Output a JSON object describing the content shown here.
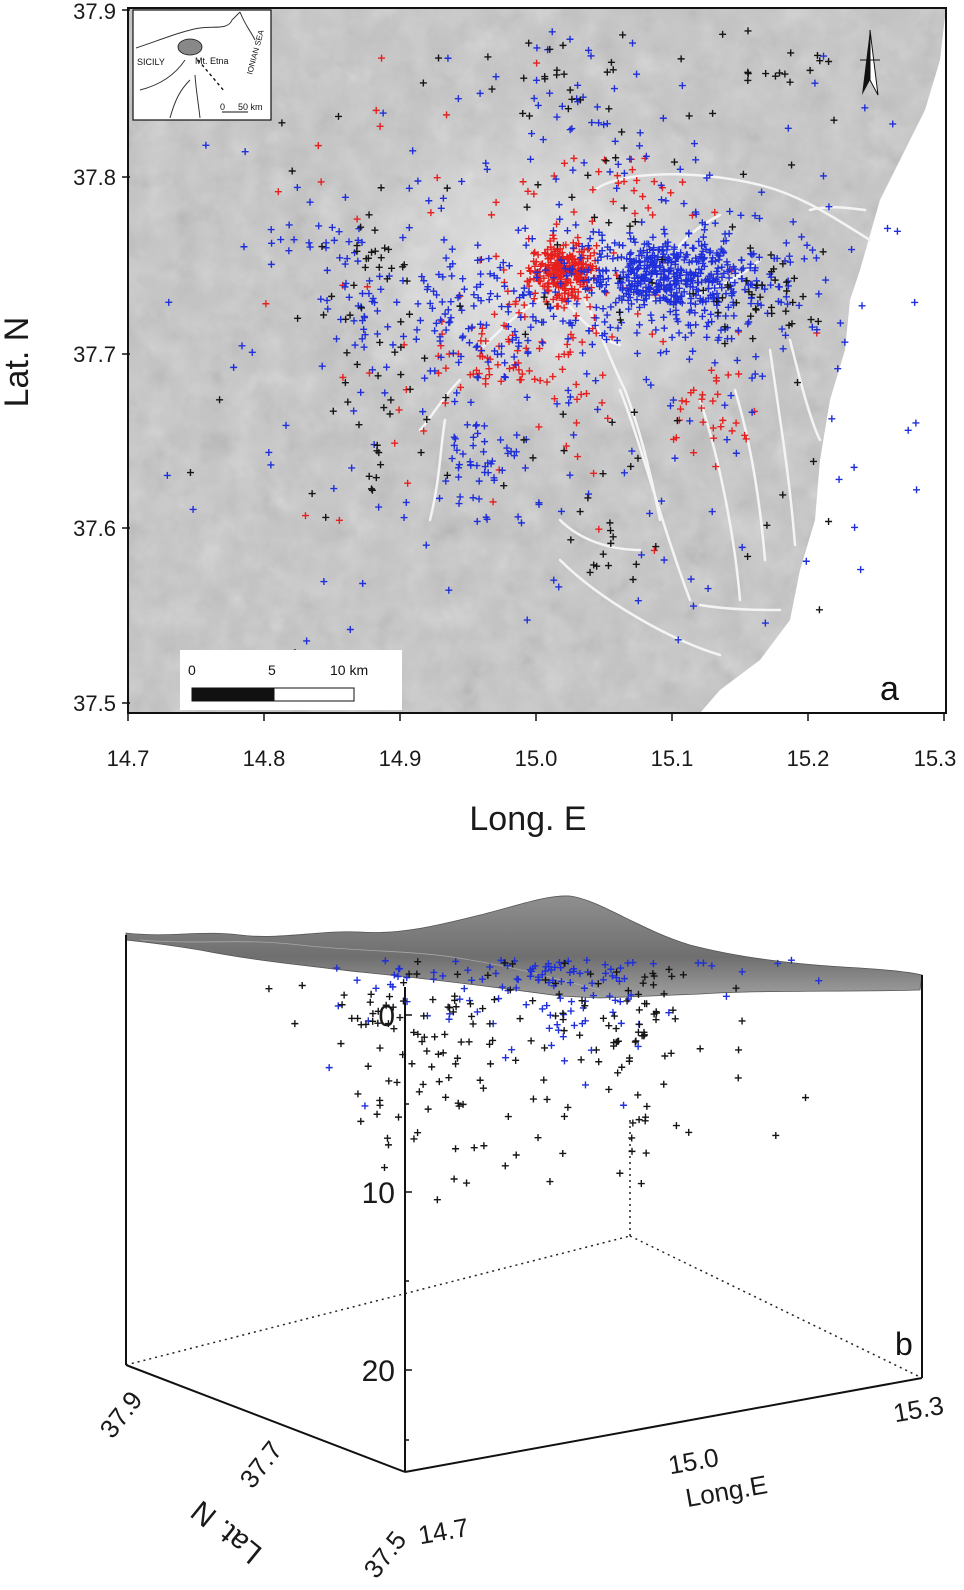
{
  "panel_a": {
    "label": "a",
    "ylabel": "Lat. N",
    "xlabel": "Long. E",
    "y_ticks": [
      "37.9",
      "37.8",
      "37.7",
      "37.6",
      "37.5"
    ],
    "x_ticks": [
      "14.7",
      "14.8",
      "14.9",
      "15.0",
      "15.1",
      "15.2",
      "15.3"
    ],
    "inset": {
      "sicily": "SICILY",
      "etna": "Mt. Etna",
      "sea": "IONIAN SEA",
      "scale_0": "0",
      "scale_50": "50 km"
    },
    "scalebar": {
      "t0": "0",
      "t5": "5",
      "t10": "10 km"
    },
    "north_arrow_icon": "north-arrow-icon"
  },
  "panel_b": {
    "label": "b",
    "depth_ticks": [
      "0",
      "10",
      "20"
    ],
    "lat_label": "Lat. N",
    "lat_ticks": [
      "37.9",
      "37.7",
      "37.5"
    ],
    "long_label": "Long.E",
    "long_ticks": [
      "14.7",
      "15.0",
      "15.3"
    ]
  },
  "colors": {
    "red": "#e5201f",
    "blue": "#1f2fd9",
    "black": "#151515",
    "relief": "#c4c4c4",
    "faults": "#ffffff"
  },
  "chart_data": {
    "type": "scatter",
    "x_range": [
      14.7,
      15.3
    ],
    "y_range": [
      37.5,
      37.9
    ],
    "depth_range_km": [
      0,
      25
    ],
    "series": [
      {
        "color": "red",
        "clusters": [
          {
            "lon": 15.02,
            "lat": 37.75,
            "sx": 0.012,
            "sy": 0.008,
            "n": 260
          },
          {
            "lon": 14.99,
            "lat": 37.72,
            "sx": 0.04,
            "sy": 0.02,
            "n": 70
          },
          {
            "lon": 15.06,
            "lat": 37.8,
            "sx": 0.03,
            "sy": 0.01,
            "n": 25
          },
          {
            "lon": 15.12,
            "lat": 37.67,
            "sx": 0.02,
            "sy": 0.015,
            "n": 30
          },
          {
            "lon": 14.97,
            "lat": 37.69,
            "sx": 0.02,
            "sy": 0.01,
            "n": 22
          },
          {
            "lon": 15.0,
            "lat": 37.72,
            "sx": 0.12,
            "sy": 0.07,
            "n": 70
          }
        ]
      },
      {
        "color": "blue",
        "clusters": [
          {
            "lon": 15.09,
            "lat": 37.745,
            "sx": 0.03,
            "sy": 0.012,
            "n": 420
          },
          {
            "lon": 15.14,
            "lat": 37.74,
            "sx": 0.03,
            "sy": 0.02,
            "n": 120
          },
          {
            "lon": 14.97,
            "lat": 37.72,
            "sx": 0.04,
            "sy": 0.025,
            "n": 140
          },
          {
            "lon": 14.96,
            "lat": 37.64,
            "sx": 0.015,
            "sy": 0.02,
            "n": 40
          },
          {
            "lon": 14.87,
            "lat": 37.73,
            "sx": 0.015,
            "sy": 0.015,
            "n": 25
          },
          {
            "lon": 14.85,
            "lat": 37.77,
            "sx": 0.03,
            "sy": 0.008,
            "n": 20
          },
          {
            "lon": 15.04,
            "lat": 37.85,
            "sx": 0.03,
            "sy": 0.03,
            "n": 40
          },
          {
            "lon": 15.03,
            "lat": 37.72,
            "sx": 0.15,
            "sy": 0.1,
            "n": 260
          }
        ]
      },
      {
        "color": "black",
        "clusters": [
          {
            "lon": 15.16,
            "lat": 37.73,
            "sx": 0.02,
            "sy": 0.012,
            "n": 35
          },
          {
            "lon": 14.89,
            "lat": 37.69,
            "sx": 0.02,
            "sy": 0.03,
            "n": 25
          },
          {
            "lon": 14.88,
            "lat": 37.76,
            "sx": 0.015,
            "sy": 0.01,
            "n": 18
          },
          {
            "lon": 15.04,
            "lat": 37.85,
            "sx": 0.04,
            "sy": 0.03,
            "n": 30
          },
          {
            "lon": 15.18,
            "lat": 37.87,
            "sx": 0.02,
            "sy": 0.01,
            "n": 15
          },
          {
            "lon": 15.06,
            "lat": 37.6,
            "sx": 0.02,
            "sy": 0.015,
            "n": 15
          },
          {
            "lon": 15.0,
            "lat": 37.72,
            "sx": 0.13,
            "sy": 0.09,
            "n": 80
          }
        ]
      }
    ]
  }
}
